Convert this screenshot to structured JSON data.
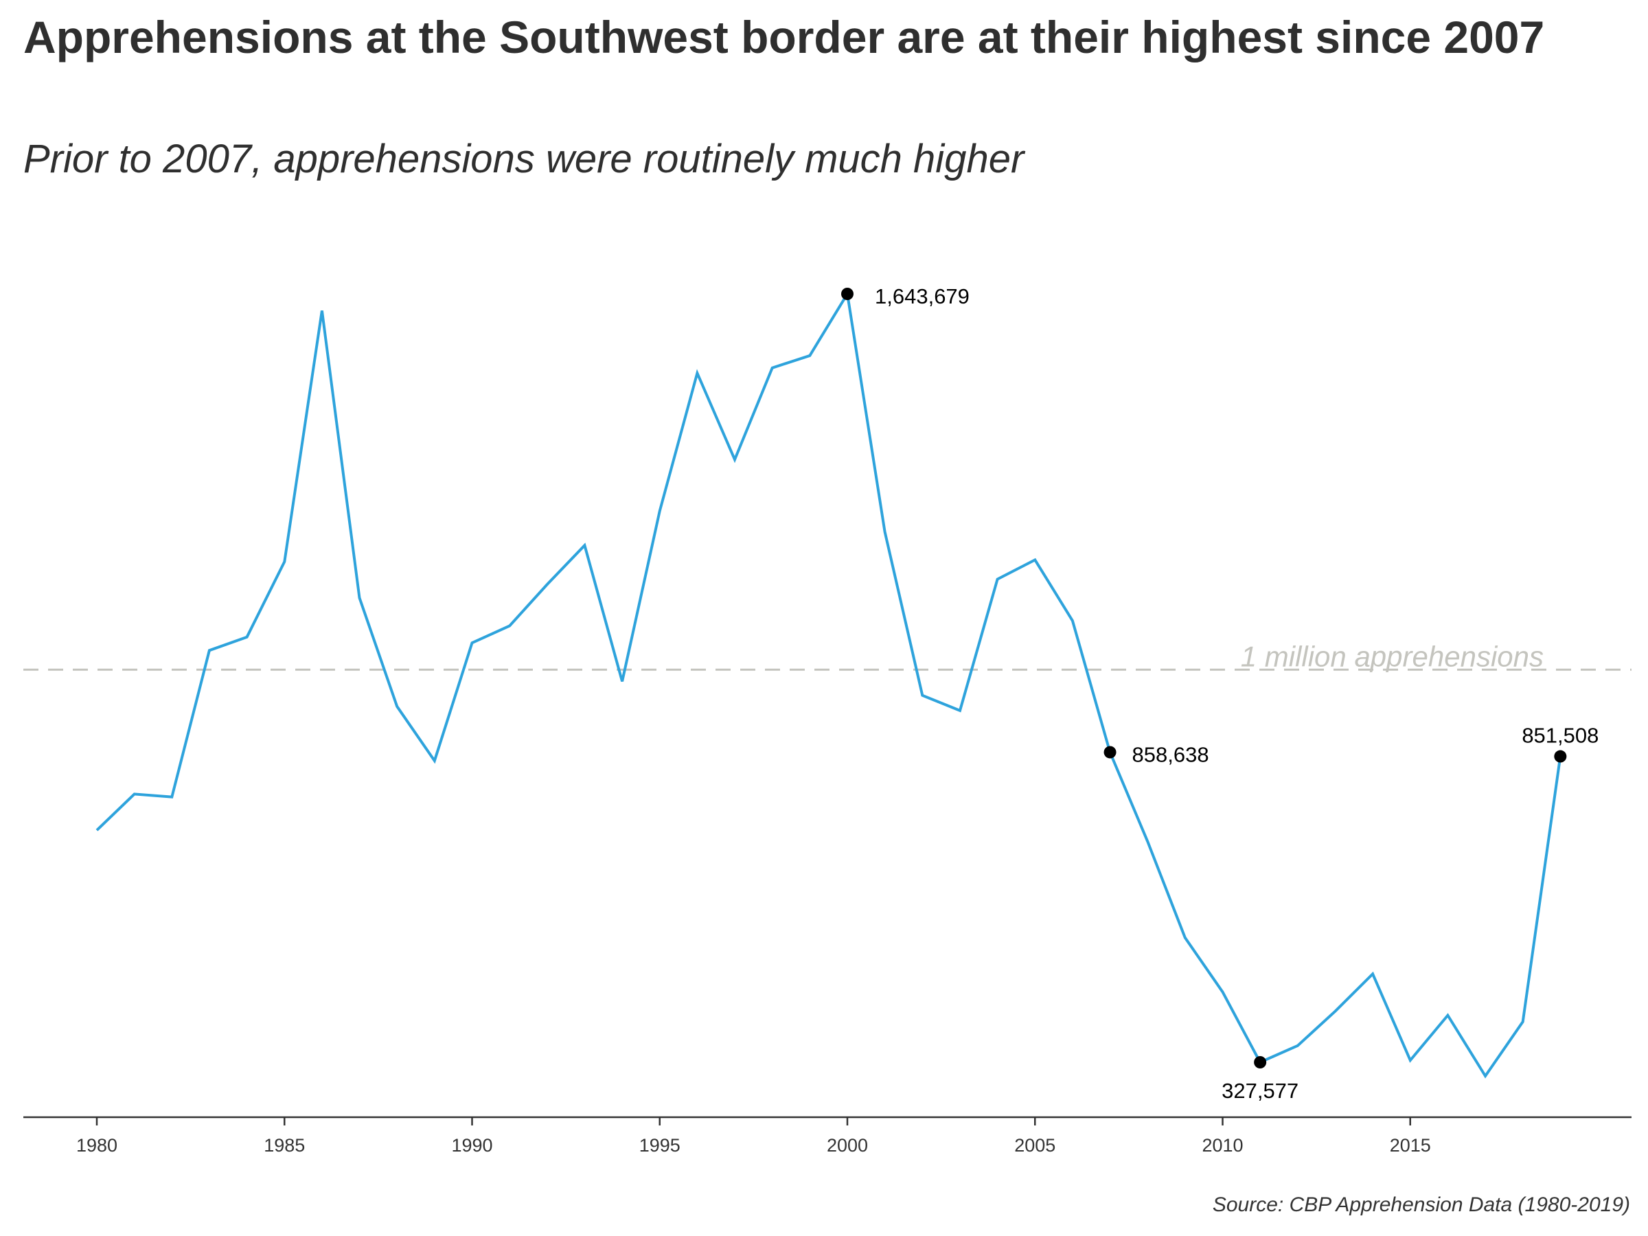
{
  "chart_data": {
    "type": "line",
    "title": "Apprehensions at the Southwest border are at their highest since 2007",
    "subtitle": "Prior to 2007, apprehensions were routinely much higher",
    "source": "Source: CBP Apprehension Data (1980-2019)",
    "xlabel": "",
    "ylabel": "",
    "xlim": [
      1978,
      2020
    ],
    "ylim": [
      200000,
      1700000
    ],
    "x_ticks": [
      "1980",
      "1985",
      "1990",
      "1995",
      "2000",
      "2005",
      "2010",
      "2015"
    ],
    "series": [
      {
        "name": "Southwest border apprehensions",
        "color": "#2ea3dc",
        "x": [
          1980,
          1981,
          1982,
          1983,
          1984,
          1985,
          1986,
          1987,
          1988,
          1989,
          1990,
          1991,
          1992,
          1993,
          1994,
          1995,
          1996,
          1997,
          1998,
          1999,
          2000,
          2001,
          2002,
          2003,
          2004,
          2005,
          2006,
          2007,
          2008,
          2009,
          2010,
          2011,
          2012,
          2013,
          2014,
          2015,
          2016,
          2017,
          2018,
          2019
        ],
        "values": [
          725000,
          787000,
          782000,
          1033000,
          1056000,
          1185000,
          1615000,
          1123000,
          937000,
          844000,
          1046000,
          1075000,
          1146000,
          1213000,
          980000,
          1272000,
          1508000,
          1360000,
          1517000,
          1538000,
          1643679,
          1236000,
          956000,
          930000,
          1155000,
          1188000,
          1084000,
          858638,
          706000,
          541000,
          448000,
          327577,
          356000,
          415000,
          479000,
          331000,
          408000,
          304000,
          397000,
          851508
        ]
      }
    ],
    "reference_line": {
      "value": 1000000,
      "label": "1 million apprehensions",
      "color": "#c4c4be"
    },
    "highlighted_points": [
      {
        "x": 2000,
        "value": 1643679,
        "label": "1,643,679"
      },
      {
        "x": 2007,
        "value": 858638,
        "label": "858,638"
      },
      {
        "x": 2011,
        "value": 327577,
        "label": "327,577"
      },
      {
        "x": 2019,
        "value": 851508,
        "label": "851,508"
      }
    ],
    "grid": false,
    "legend": "none"
  }
}
